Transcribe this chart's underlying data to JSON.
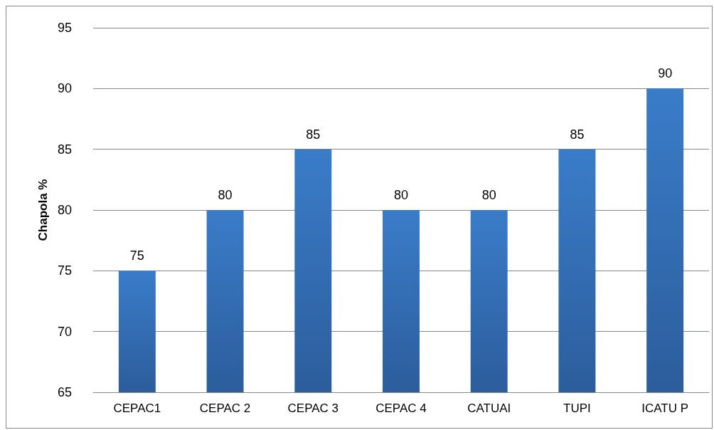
{
  "chart_data": {
    "type": "bar",
    "ylabel": "Chapola %",
    "categories": [
      "CEPAC1",
      "CEPAC 2",
      "CEPAC 3",
      "CEPAC 4",
      "CATUAI",
      "TUPI",
      "ICATU P"
    ],
    "values": [
      75,
      80,
      85,
      80,
      80,
      85,
      90
    ],
    "color": "#3a7cc9",
    "ylim": [
      65,
      95
    ],
    "yticks": [
      65,
      70,
      75,
      80,
      85,
      90,
      95
    ],
    "grid": "y",
    "data_labels": true
  }
}
